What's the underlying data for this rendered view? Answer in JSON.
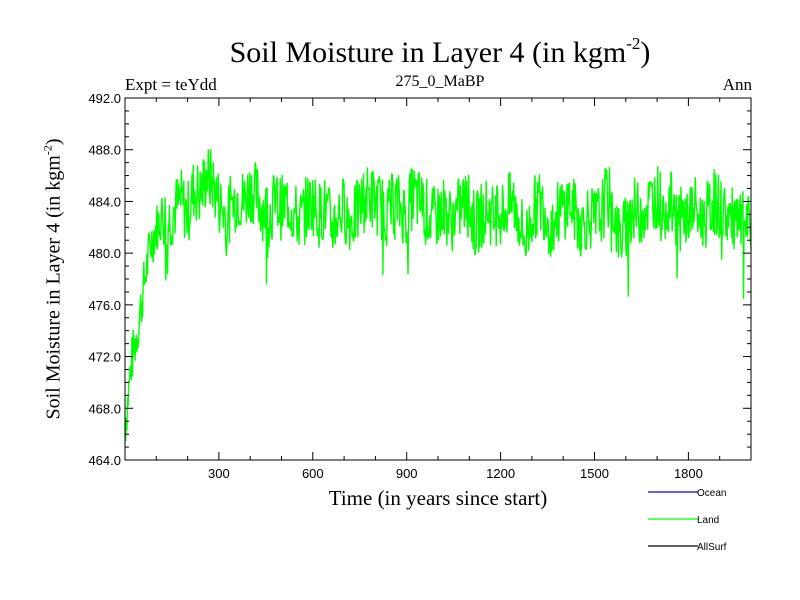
{
  "chart_data": {
    "type": "line",
    "title": "Soil Moisture in Layer 4 (in kgm",
    "title_exponent": "-2",
    "title_close": ")",
    "subtitle_left": "Expt = teYdd",
    "subtitle_center": "275_0_MaBP",
    "subtitle_right": "Ann",
    "xlabel": "Time (in years since start)",
    "ylabel": "Soil Moisture in Layer 4 (in kgm",
    "ylabel_exponent": "-2",
    "ylabel_close": ")",
    "xlim": [
      0,
      2000
    ],
    "ylim": [
      464.0,
      492.0
    ],
    "xticks": [
      300,
      600,
      900,
      1200,
      1500,
      1800
    ],
    "xtick_labels": [
      "300",
      "600",
      "900",
      "1200",
      "1500",
      "1800"
    ],
    "yticks": [
      464.0,
      468.0,
      472.0,
      476.0,
      480.0,
      484.0,
      488.0,
      492.0
    ],
    "ytick_labels": [
      "464.0",
      "468.0",
      "472.0",
      "476.0",
      "480.0",
      "484.0",
      "488.0",
      "492.0"
    ],
    "legend_position": "bottom-right, outside plot",
    "series": [
      {
        "name": "Ocean",
        "color": "#0000ff",
        "values": []
      },
      {
        "name": "Land",
        "color": "#00ff00",
        "x_step": 20,
        "x_start": 0,
        "values": [
          466.5,
          471.5,
          474.0,
          477.5,
          480.5,
          482.0,
          483.0,
          482.5,
          483.5,
          484.0,
          483.0,
          485.0,
          484.5,
          486.0,
          485.5,
          484.0,
          483.0,
          483.5,
          484.5,
          484.0,
          485.0,
          484.5,
          483.5,
          483.0,
          484.0,
          483.5,
          484.0,
          483.0,
          482.5,
          483.5,
          484.0,
          483.0,
          483.5,
          482.0,
          483.0,
          483.5,
          482.5,
          483.0,
          484.0,
          484.5,
          484.0,
          483.5,
          483.0,
          484.0,
          483.5,
          483.0,
          484.5,
          484.0,
          483.5,
          482.5,
          483.0,
          483.5,
          482.5,
          483.0,
          484.0,
          483.5,
          482.0,
          483.0,
          483.5,
          482.5,
          483.0,
          483.5,
          484.0,
          482.5,
          481.0,
          483.0,
          484.0,
          483.5,
          482.0,
          483.0,
          483.5,
          484.0,
          483.0,
          482.0,
          483.0,
          482.5,
          483.0,
          484.5,
          483.5,
          481.0,
          482.0,
          483.5,
          483.0,
          483.5,
          484.0,
          484.5,
          483.5,
          484.0,
          483.0,
          482.5,
          483.0,
          483.5,
          482.5,
          483.0,
          484.0,
          483.5,
          483.0,
          482.5,
          482.0,
          482.5,
          481.5
        ]
      },
      {
        "name": "AllSurf",
        "color": "#000000",
        "values": []
      }
    ]
  }
}
